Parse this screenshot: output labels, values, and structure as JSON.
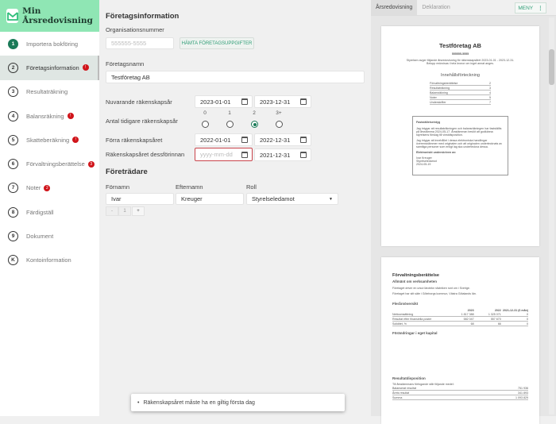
{
  "app": {
    "title": "Min Årsredovisning"
  },
  "sidebar": {
    "items": [
      {
        "num": "1",
        "label": "Importera bokföring",
        "done": true,
        "badge": ""
      },
      {
        "num": "2",
        "label": "Företagsinformation",
        "active": true,
        "badge": "!"
      },
      {
        "num": "3",
        "label": "Resultaträkning",
        "badge": ""
      },
      {
        "num": "4",
        "label": "Balansräkning",
        "badge": "!"
      },
      {
        "num": "5",
        "label": "Skatteberäkning",
        "badge": "!"
      },
      {
        "num": "6",
        "label": "Förvaltningsberättelse",
        "badge": "3"
      },
      {
        "num": "7",
        "label": "Noter",
        "badge": "2"
      },
      {
        "num": "8",
        "label": "Färdigställ",
        "badge": ""
      },
      {
        "num": "9",
        "label": "Dokument",
        "badge": ""
      },
      {
        "num": "K",
        "label": "Kontoinformation",
        "badge": ""
      }
    ]
  },
  "form": {
    "title": "Företagsinformation",
    "org_label": "Organisationsnummer",
    "org_placeholder": "555555-5555",
    "fetch_button": "HÄMTA FÖRETAGSUPPGIFTER",
    "name_label": "Företagsnamn",
    "name_value": "Testföretag AB",
    "current_label": "Nuvarande räkenskapsår",
    "current_start": "2023-01-01",
    "current_end": "2023-12-31",
    "prev_count_label": "Antal tidigare räkenskapsår",
    "prev_count_options": [
      "0",
      "1",
      "2",
      "3+"
    ],
    "prev_count_selected": "2",
    "prev_label": "Förra räkenskapsåret",
    "prev_start": "2022-01-01",
    "prev_end": "2022-12-31",
    "prev2_label": "Räkenskapsåret dessförinnan",
    "prev2_start_placeholder": "yyyy-mm-dd",
    "prev2_end": "2021-12-31",
    "reps_title": "Företrädare",
    "first_label": "Förnamn",
    "last_label": "Efternamn",
    "role_label": "Roll",
    "first_value": "Ivar",
    "last_value": "Kreuger",
    "role_value": "Styrelseledamot",
    "stepper": {
      "minus": "-",
      "count": "1",
      "plus": "+"
    }
  },
  "toast": {
    "message": "Räkenskapsåret måste ha en giltig första dag"
  },
  "preview": {
    "tabs": [
      "Årsredovisning",
      "Deklaration"
    ],
    "active_tab": "Årsredovisning",
    "menu_button": "MENY",
    "page1": {
      "company": "Testföretag AB",
      "org": "555555-5555",
      "intro": "Styrelsen avger följande årsredovisning för räkenskapsåret 2023-01-01 - 2023-12-31. Belopp redovisas i hela kronor om inget annat anges.",
      "toc_title": "Innehållsförteckning",
      "toc": [
        {
          "t": "Förvaltningsberättelse",
          "p": "2"
        },
        {
          "t": "Resultaträkning",
          "p": "3"
        },
        {
          "t": "Balansräkning",
          "p": "4"
        },
        {
          "t": "Noter",
          "p": "5"
        },
        {
          "t": "Underskrifter",
          "p": "7"
        }
      ],
      "cert_title": "Fastställelseintyg",
      "cert_text1": "Jag intygar att resultaträkningen och balansräkningen har fastställts på årsstämma 2024-05-17. Årsstämman beslöt att godkänna styrelsens förslag till vinstdisposition.",
      "cert_text2": "Jag intygar att innehållet i dessa elektroniska handlingar överensstämmer med originalen och att originalen undertecknats av samtliga personer som enligt lag ska underteckna dessa.",
      "cert_sign": "Elektroniskt underskriven av:",
      "cert_name": "Ivar Kreuger",
      "cert_role": "Styrelseledamot",
      "cert_date": "2024-05-19"
    },
    "page2": {
      "title": "Förvaltningsberättelse",
      "s1": "Allmänt om verksamheten",
      "p1": "Företaget driver en ursut lärotekn sfabriken runt om i Sverige.",
      "p2": "Företaget har sitt säte i Göteborgs kommun, Västra Götalands län.",
      "s2": "Flerårsöversikt",
      "cols": [
        "2023",
        "2022",
        "2021-12-31 (6 mån)"
      ],
      "rows": [
        [
          "Nettoomsättning",
          "1 817 388",
          "1 325 071",
          "0"
        ],
        [
          "Resultat efter finansiella poster",
          "582 047",
          "557 670",
          "0"
        ],
        [
          "Soliditet, %",
          "68",
          "66",
          "0"
        ]
      ],
      "s3": "Förändringar i eget kapital",
      "s4": "Resultatdisposition",
      "p3": "Till årsstämmans förfogande står följande medel:",
      "disp": [
        [
          "Balanserat resultat",
          "751 936"
        ],
        [
          "Årets resultat",
          "341 893"
        ],
        [
          "Summa",
          "1 093 829"
        ]
      ]
    }
  }
}
